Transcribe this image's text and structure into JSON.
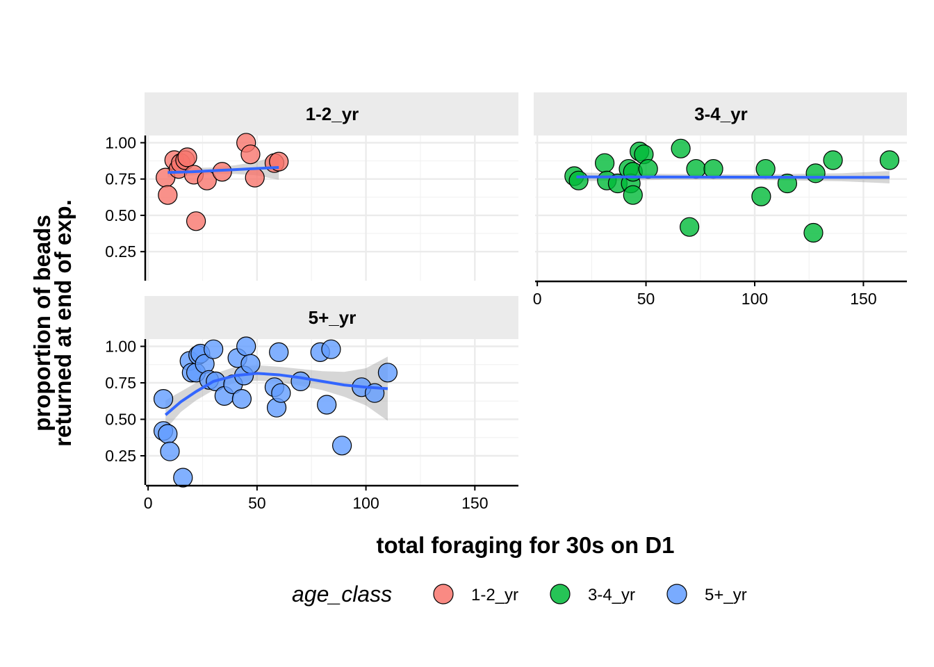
{
  "chart_data": {
    "type": "scatter",
    "xlabel": "total foraging for 30s on D1",
    "ylabel_lines": [
      "proportion of beads",
      "returned at end of exp."
    ],
    "xlim": [
      -1,
      170
    ],
    "ylim": [
      0.05,
      1.05
    ],
    "x_ticks": [
      0,
      50,
      100,
      150
    ],
    "x_tick_labels": [
      "0",
      "50",
      "100",
      "150"
    ],
    "y_ticks": [
      0.25,
      0.5,
      0.75,
      1.0
    ],
    "y_tick_labels": [
      "0.25",
      "0.50",
      "0.75",
      "1.00"
    ],
    "grid": true,
    "legend": {
      "title": "age_class",
      "position": "bottom",
      "entries": [
        {
          "label": "1-2_yr",
          "color": "#F8766D"
        },
        {
          "label": "3-4_yr",
          "color": "#00BA38"
        },
        {
          "label": "5+_yr",
          "color": "#619CFF"
        }
      ]
    },
    "smooth_color": "#3366FF",
    "band_color": "#999999",
    "panels": [
      {
        "strip": "1-2_yr",
        "color": "#F8766D",
        "points": [
          [
            8,
            0.76
          ],
          [
            9,
            0.64
          ],
          [
            12,
            0.88
          ],
          [
            14,
            0.82
          ],
          [
            15,
            0.86
          ],
          [
            17,
            0.88
          ],
          [
            18,
            0.9
          ],
          [
            21,
            0.78
          ],
          [
            22,
            0.46
          ],
          [
            27,
            0.74
          ],
          [
            34,
            0.8
          ],
          [
            45,
            1.0
          ],
          [
            47,
            0.92
          ],
          [
            49,
            0.76
          ],
          [
            58,
            0.86
          ],
          [
            60,
            0.87
          ]
        ],
        "fit": [
          [
            9,
            0.795
          ],
          [
            20,
            0.8
          ],
          [
            30,
            0.808
          ],
          [
            40,
            0.815
          ],
          [
            50,
            0.823
          ],
          [
            60,
            0.83
          ]
        ],
        "band": [
          [
            9,
            0.76,
            0.83
          ],
          [
            20,
            0.775,
            0.825
          ],
          [
            30,
            0.785,
            0.83
          ],
          [
            40,
            0.785,
            0.845
          ],
          [
            50,
            0.775,
            0.87
          ],
          [
            60,
            0.745,
            0.915
          ]
        ]
      },
      {
        "strip": "3-4_yr",
        "color": "#00BA38",
        "points": [
          [
            17,
            0.77
          ],
          [
            19,
            0.74
          ],
          [
            31,
            0.86
          ],
          [
            32,
            0.74
          ],
          [
            37,
            0.72
          ],
          [
            42,
            0.82
          ],
          [
            43,
            0.72
          ],
          [
            44,
            0.64
          ],
          [
            44,
            0.8
          ],
          [
            47,
            0.94
          ],
          [
            49,
            0.92
          ],
          [
            51,
            0.82
          ],
          [
            66,
            0.96
          ],
          [
            70,
            0.42
          ],
          [
            73,
            0.82
          ],
          [
            81,
            0.82
          ],
          [
            103,
            0.63
          ],
          [
            105,
            0.82
          ],
          [
            115,
            0.72
          ],
          [
            127,
            0.38
          ],
          [
            128,
            0.79
          ],
          [
            136,
            0.88
          ],
          [
            162,
            0.88
          ]
        ],
        "fit": [
          [
            18,
            0.765
          ],
          [
            60,
            0.764
          ],
          [
            100,
            0.763
          ],
          [
            140,
            0.762
          ],
          [
            162,
            0.762
          ]
        ],
        "band": [
          [
            18,
            0.735,
            0.795
          ],
          [
            60,
            0.745,
            0.785
          ],
          [
            100,
            0.745,
            0.782
          ],
          [
            140,
            0.735,
            0.79
          ],
          [
            162,
            0.72,
            0.805
          ]
        ]
      },
      {
        "strip": "5+_yr",
        "color": "#619CFF",
        "points": [
          [
            7,
            0.64
          ],
          [
            7,
            0.42
          ],
          [
            9,
            0.4
          ],
          [
            10,
            0.28
          ],
          [
            16,
            0.1
          ],
          [
            19,
            0.9
          ],
          [
            20,
            0.82
          ],
          [
            22,
            0.82
          ],
          [
            23,
            0.94
          ],
          [
            24,
            0.95
          ],
          [
            26,
            0.88
          ],
          [
            28,
            0.77
          ],
          [
            30,
            0.98
          ],
          [
            31,
            0.76
          ],
          [
            35,
            0.66
          ],
          [
            39,
            0.74
          ],
          [
            41,
            0.92
          ],
          [
            43,
            0.64
          ],
          [
            44,
            0.8
          ],
          [
            45,
            1.0
          ],
          [
            47,
            0.88
          ],
          [
            58,
            0.72
          ],
          [
            59,
            0.58
          ],
          [
            60,
            0.96
          ],
          [
            61,
            0.68
          ],
          [
            70,
            0.76
          ],
          [
            79,
            0.96
          ],
          [
            82,
            0.6
          ],
          [
            84,
            0.98
          ],
          [
            89,
            0.32
          ],
          [
            98,
            0.72
          ],
          [
            104,
            0.68
          ],
          [
            110,
            0.82
          ]
        ],
        "fit": [
          [
            8,
            0.53
          ],
          [
            15,
            0.62
          ],
          [
            22,
            0.69
          ],
          [
            30,
            0.76
          ],
          [
            40,
            0.8
          ],
          [
            50,
            0.815
          ],
          [
            60,
            0.805
          ],
          [
            70,
            0.785
          ],
          [
            80,
            0.76
          ],
          [
            90,
            0.735
          ],
          [
            100,
            0.72
          ],
          [
            110,
            0.71
          ]
        ],
        "band": [
          [
            8,
            0.43,
            0.63
          ],
          [
            15,
            0.55,
            0.69
          ],
          [
            22,
            0.63,
            0.75
          ],
          [
            30,
            0.7,
            0.81
          ],
          [
            40,
            0.75,
            0.86
          ],
          [
            50,
            0.765,
            0.87
          ],
          [
            60,
            0.755,
            0.86
          ],
          [
            70,
            0.73,
            0.845
          ],
          [
            80,
            0.7,
            0.83
          ],
          [
            90,
            0.655,
            0.825
          ],
          [
            100,
            0.595,
            0.85
          ],
          [
            110,
            0.49,
            0.93
          ]
        ]
      }
    ]
  }
}
